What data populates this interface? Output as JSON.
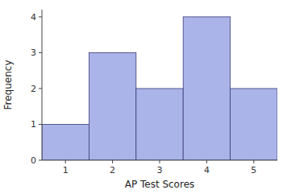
{
  "chart_data": {
    "type": "bar",
    "x": [
      1,
      2,
      3,
      4,
      5
    ],
    "values": [
      1,
      3,
      2,
      4,
      2
    ],
    "color": "#aab4e8",
    "xlabel": "AP Test Scores",
    "ylabel": "Frequency",
    "xlim": [
      0.5,
      5.5
    ],
    "ylim": [
      0,
      4.2
    ],
    "xticks": [
      1,
      2,
      3,
      4,
      5
    ],
    "yticks": [
      0,
      1,
      2,
      3,
      4
    ],
    "grid": false
  }
}
